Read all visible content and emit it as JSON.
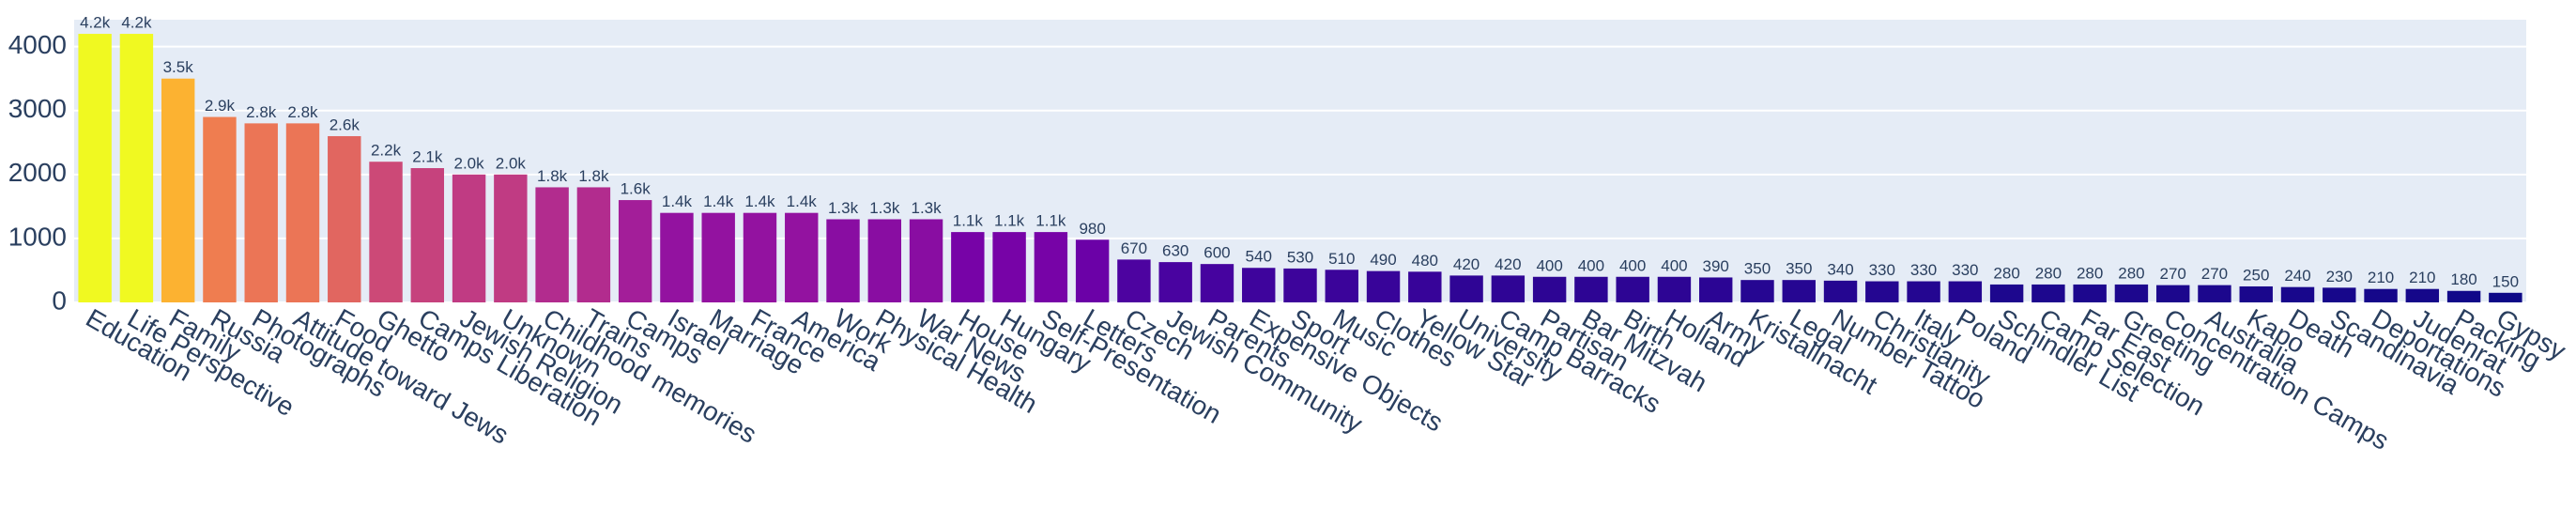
{
  "chart_data": {
    "type": "bar",
    "categories": [
      "Education",
      "Life Perspective",
      "Family",
      "Russia",
      "Photographs",
      "Attitude toward Jews",
      "Food",
      "Ghetto",
      "Camps Liberation",
      "Jewish Religion",
      "Unknown",
      "Childhood memories",
      "Trains",
      "Camps",
      "Israel",
      "Marriage",
      "France",
      "America",
      "Work",
      "Physical Health",
      "War News",
      "House",
      "Hungary",
      "Self-Presentation",
      "Letters",
      "Czech",
      "Jewish Community",
      "Parents",
      "Expensive Objects",
      "Sport",
      "Music",
      "Clothes",
      "Yellow Star",
      "University",
      "Camp Barracks",
      "Partisan",
      "Bar Mitzvah",
      "Birth",
      "Holland",
      "Army",
      "Kristallnacht",
      "Legal",
      "Number Tattoo",
      "Christianity",
      "Italy",
      "Poland",
      "Schindler List",
      "Camp Selection",
      "Far East",
      "Greeting",
      "Concentration Camps",
      "Australia",
      "Kapo",
      "Death",
      "Scandinavia",
      "Deportations",
      "Judenrat",
      "Packing",
      "Gypsy"
    ],
    "values": [
      4200,
      4200,
      3500,
      2900,
      2800,
      2800,
      2600,
      2200,
      2100,
      2000,
      2000,
      1800,
      1800,
      1600,
      1400,
      1400,
      1400,
      1400,
      1300,
      1300,
      1300,
      1100,
      1100,
      1100,
      980,
      670,
      630,
      600,
      540,
      530,
      510,
      490,
      480,
      420,
      420,
      400,
      400,
      400,
      400,
      390,
      350,
      350,
      340,
      330,
      330,
      330,
      280,
      280,
      280,
      280,
      270,
      270,
      250,
      240,
      230,
      210,
      210,
      180,
      150
    ],
    "value_labels": [
      "4.2k",
      "4.2k",
      "3.5k",
      "2.9k",
      "2.8k",
      "2.8k",
      "2.6k",
      "2.2k",
      "2.1k",
      "2.0k",
      "2.0k",
      "1.8k",
      "1.8k",
      "1.6k",
      "1.4k",
      "1.4k",
      "1.4k",
      "1.4k",
      "1.3k",
      "1.3k",
      "1.3k",
      "1.1k",
      "1.1k",
      "1.1k",
      "980",
      "670",
      "630",
      "600",
      "540",
      "530",
      "510",
      "490",
      "480",
      "420",
      "420",
      "400",
      "400",
      "400",
      "400",
      "390",
      "350",
      "350",
      "340",
      "330",
      "330",
      "330",
      "280",
      "280",
      "280",
      "280",
      "270",
      "270",
      "250",
      "240",
      "230",
      "210",
      "210",
      "180",
      "150"
    ],
    "colorscale": [
      "#0d0887",
      "#46039f",
      "#7201a8",
      "#9c179e",
      "#bd3786",
      "#d8576b",
      "#ed7953",
      "#fb9f3a",
      "#fdca26",
      "#f0f921"
    ],
    "ylim": [
      0,
      4421
    ],
    "yticks": [
      0,
      1000,
      2000,
      3000,
      4000
    ],
    "grid": true
  }
}
